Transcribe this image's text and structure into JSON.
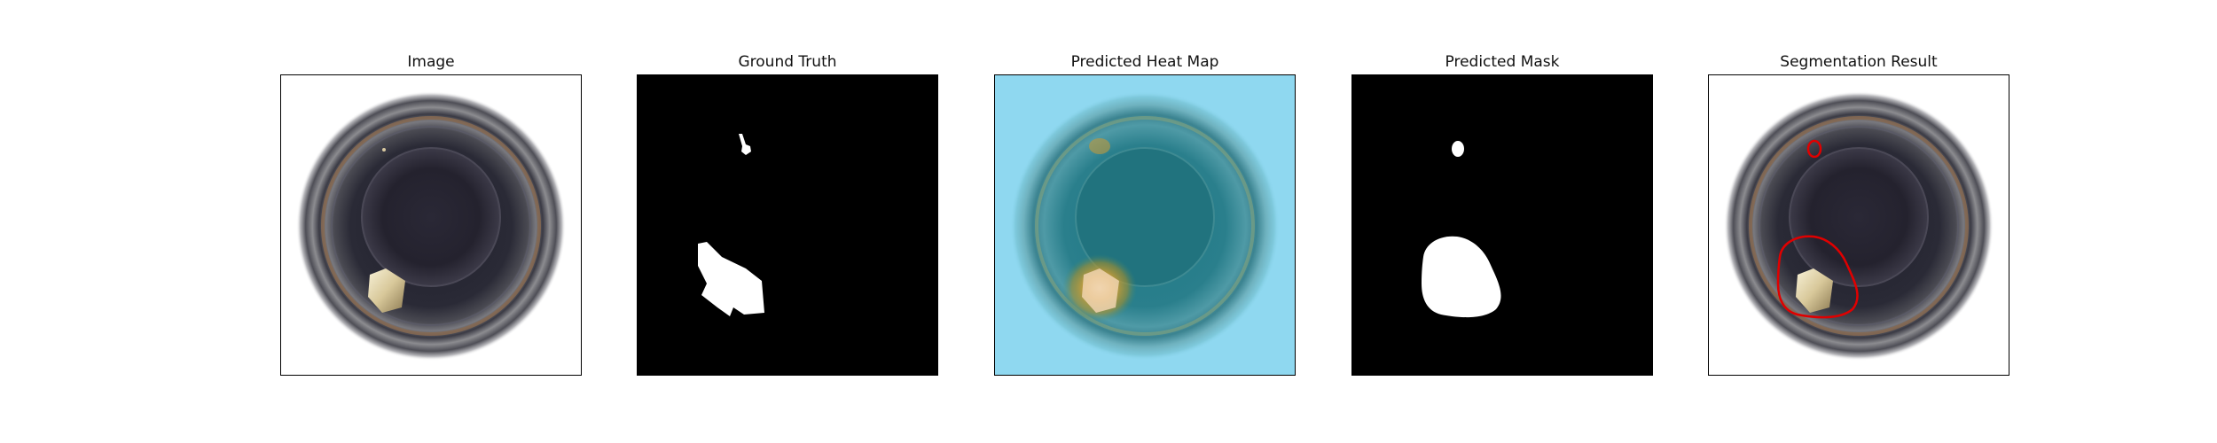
{
  "figure": {
    "panels": [
      {
        "title": "Image"
      },
      {
        "title": "Ground Truth"
      },
      {
        "title": "Predicted Heat Map"
      },
      {
        "title": "Predicted Mask"
      },
      {
        "title": "Segmentation Result"
      }
    ]
  },
  "colors": {
    "background": "#ffffff",
    "mask_background": "#000000",
    "mask_foreground": "#ffffff",
    "contour": "#e00000",
    "heatmap_low": "#8fd8f0",
    "heatmap_high": "#d7a23a"
  }
}
